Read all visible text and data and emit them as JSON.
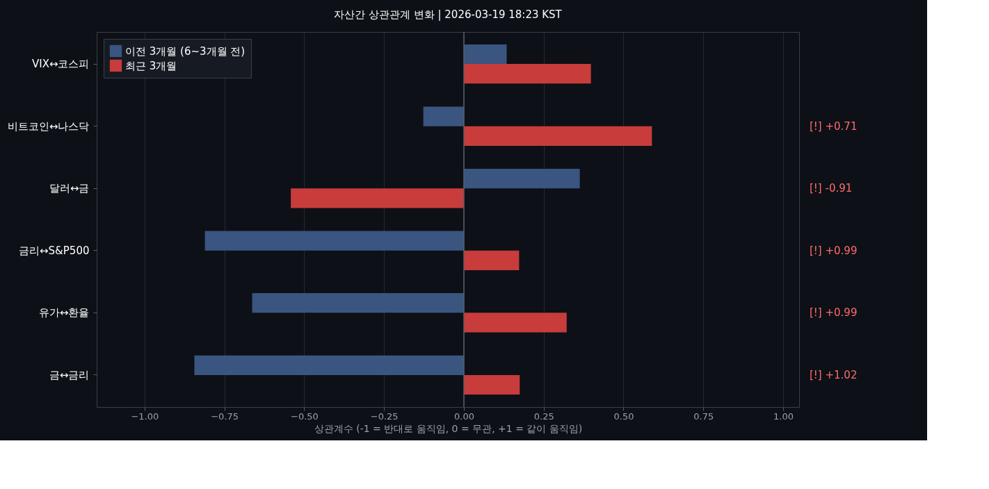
{
  "chart_data": {
    "type": "bar",
    "orientation": "horizontal",
    "title": "자산간 상관관계 변화  |  2026-03-19 18:23 KST",
    "xlabel": "상관계수 (-1 = 반대로 움직임, 0 = 무관, +1 = 같이 움직임)",
    "categories": [
      "VIX↔코스피",
      "비트코인↔나스닥",
      "달러↔금",
      "금리↔S&P500",
      "유가↔환율",
      "금↔금리"
    ],
    "series": [
      {
        "name": "이전 3개월 (6~3개월 전)",
        "color": "#3a5580",
        "values": [
          0.134,
          -0.127,
          0.363,
          -0.811,
          -0.663,
          -0.844
        ]
      },
      {
        "name": "최근 3개월",
        "color": "#c83c3c",
        "values": [
          0.398,
          0.589,
          -0.542,
          0.173,
          0.322,
          0.175
        ]
      }
    ],
    "xlim": [
      -1.15,
      1.05
    ],
    "xticks": [
      {
        "value": -1,
        "label": "−1.00"
      },
      {
        "value": -0.75,
        "label": "−0.75"
      },
      {
        "value": -0.5,
        "label": "−0.50"
      },
      {
        "value": -0.25,
        "label": "−0.25"
      },
      {
        "value": 0,
        "label": "0.00"
      },
      {
        "value": 0.25,
        "label": "0.25"
      },
      {
        "value": 0.5,
        "label": "0.50"
      },
      {
        "value": 0.75,
        "label": "0.75"
      },
      {
        "value": 1,
        "label": "1.00"
      }
    ],
    "ref_lines": [
      {
        "axis": "x",
        "value": 0,
        "color": "#5a5e66"
      }
    ],
    "annotations": [
      "[!] +0.71",
      "[!] -0.91",
      "[!] +0.99",
      "[!] +0.99",
      "[!] +1.02"
    ],
    "grid": "x",
    "legend": "top left"
  }
}
